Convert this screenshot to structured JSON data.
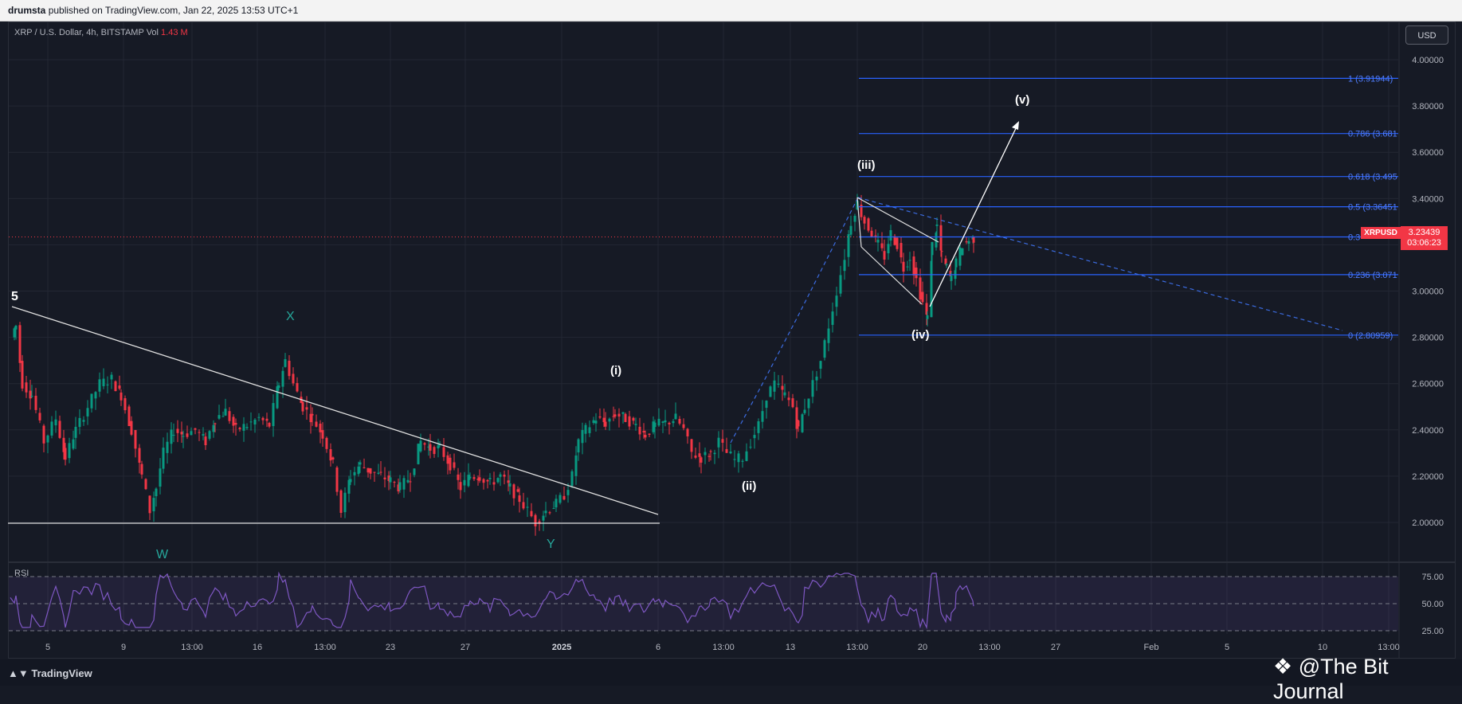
{
  "header": {
    "publisher": "drumsta",
    "published_text": "published on TradingView.com, Jan 22, 2025 13:53 UTC+1"
  },
  "symbol": {
    "name": "XRP / U.S. Dollar, 4h, BITSTAMP",
    "vol_label": "Vol",
    "vol_value": "1.43 M"
  },
  "currency_button": "USD",
  "last_price": {
    "symbol": "XRPUSD",
    "value": "3.23439",
    "countdown": "03:06:23"
  },
  "price_axis_labels": [
    "4.00000",
    "3.80000",
    "3.60000",
    "3.40000",
    "3.20000",
    "3.00000",
    "2.80000",
    "2.60000",
    "2.40000",
    "2.20000",
    "2.00000"
  ],
  "time_axis_labels": [
    "5",
    "9",
    "13:00",
    "16",
    "13:00",
    "23",
    "27",
    "2025",
    "6",
    "13:00",
    "13",
    "13:00",
    "20",
    "13:00",
    "27",
    "Feb",
    "5",
    "10",
    "13:00"
  ],
  "rsi": {
    "label": "RSI",
    "axis_labels": [
      "75.00",
      "50.00",
      "25.00"
    ]
  },
  "fib_levels": [
    {
      "label": "1 (3.91944)",
      "value": 3.91944
    },
    {
      "label": "0.786 (3.681",
      "value": 3.681
    },
    {
      "label": "0.618 (3.495",
      "value": 3.495
    },
    {
      "label": "0.5 (3.36451",
      "value": 3.36451
    },
    {
      "label": "0.3",
      "value": 3.234
    },
    {
      "label": "0.236 (3.071",
      "value": 3.071
    },
    {
      "label": "0 (2.80959)",
      "value": 2.80959
    }
  ],
  "wave_labels": {
    "five": "5",
    "x": "X",
    "w": "W",
    "y": "Y",
    "i": "(i)",
    "ii": "(ii)",
    "iii": "(iii)",
    "iv": "(iv)",
    "v": "(v)"
  },
  "footer": {
    "logo": "TradingView",
    "watermark": "@The Bit Journal"
  },
  "colors": {
    "background": "#161a25",
    "up": "#089981",
    "down": "#f23645",
    "fib": "#2962ff",
    "rsi": "#7e57c2"
  },
  "icons": [
    "tradingview-logo-icon",
    "the-bit-journal-logo-icon"
  ]
}
